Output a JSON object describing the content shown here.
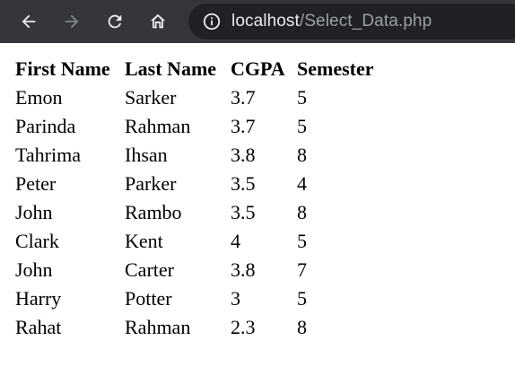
{
  "browser": {
    "url_host": "localhost",
    "url_path": "/Select_Data.php",
    "icons": {
      "back": "back-arrow-icon",
      "forward": "forward-arrow-icon",
      "reload": "reload-icon",
      "home": "home-icon",
      "info": "info-icon"
    }
  },
  "table": {
    "headers": [
      "First Name",
      "Last Name",
      "CGPA",
      "Semester"
    ],
    "rows": [
      [
        "Emon",
        "Sarker",
        "3.7",
        "5"
      ],
      [
        "Parinda",
        "Rahman",
        "3.7",
        "5"
      ],
      [
        "Tahrima",
        "Ihsan",
        "3.8",
        "8"
      ],
      [
        "Peter",
        "Parker",
        "3.5",
        "4"
      ],
      [
        "John",
        "Rambo",
        "3.5",
        "8"
      ],
      [
        "Clark",
        "Kent",
        "4",
        "5"
      ],
      [
        "John",
        "Carter",
        "3.8",
        "7"
      ],
      [
        "Harry",
        "Potter",
        "3",
        "5"
      ],
      [
        "Rahat",
        "Rahman",
        "2.3",
        "8"
      ]
    ]
  }
}
